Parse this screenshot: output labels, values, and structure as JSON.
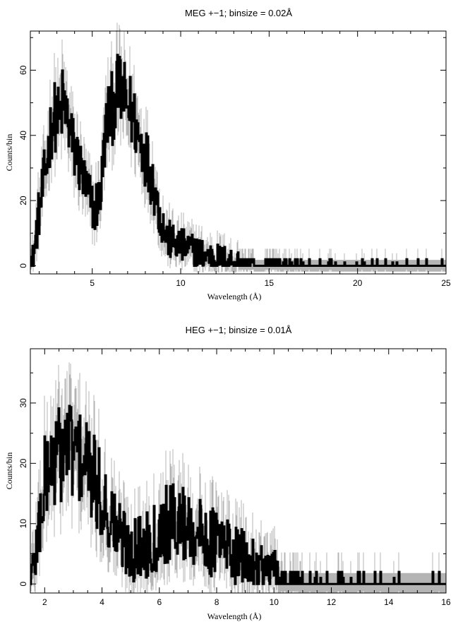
{
  "chart_data": [
    {
      "type": "line",
      "title": "MEG +−1; binsize = 0.02Å",
      "xlabel": "Wavelength (Å)",
      "ylabel": "Counts/bin",
      "xlim": [
        1.5,
        25
      ],
      "ylim": [
        -2.5,
        72
      ],
      "xticks": [
        5,
        10,
        15,
        20,
        25
      ],
      "xtick_labels": [
        "5",
        "10",
        "15",
        "20",
        "25"
      ],
      "yticks": [
        0,
        20,
        40,
        60
      ],
      "ytick_labels": [
        "0",
        "20",
        "40",
        "60"
      ],
      "legend": "none",
      "grid": false,
      "series": [
        {
          "x": [
            1.5,
            1.7,
            1.9,
            2.1,
            2.3,
            2.5,
            2.7,
            2.9,
            3.1,
            3.3,
            3.5,
            3.7,
            3.9,
            4.1,
            4.3,
            4.5,
            4.7,
            4.9,
            5.1,
            5.3,
            5.5,
            5.7,
            5.9,
            6.1,
            6.3,
            6.5,
            6.7,
            6.9,
            7.1,
            7.3,
            7.5,
            7.7,
            7.9,
            8.1,
            8.3,
            8.5,
            8.7,
            8.9,
            9.1,
            9.3,
            9.6,
            10.0,
            10.5,
            11.0,
            11.5,
            12.0,
            12.5,
            13.0,
            13.5,
            14.0,
            14.5,
            15.0,
            16.0,
            17.0,
            18.0,
            19.0,
            20.0,
            21.0,
            22.0,
            23.0,
            24.0,
            25.0
          ],
          "y": [
            0,
            4,
            14,
            20,
            28,
            36,
            44,
            46,
            44,
            50,
            47,
            42,
            36,
            34,
            30,
            26,
            22,
            20,
            17,
            20,
            24,
            40,
            46,
            48,
            52,
            54,
            52,
            50,
            48,
            46,
            42,
            38,
            36,
            32,
            28,
            24,
            18,
            14,
            10,
            8,
            7,
            6,
            5,
            4,
            3,
            2.5,
            2,
            1.5,
            1,
            0.8,
            0.6,
            0.5,
            0.4,
            0.3,
            0.3,
            0.2,
            0.2,
            0.2,
            0.2,
            0.2,
            0.2,
            0.2
          ]
        }
      ]
    },
    {
      "type": "line",
      "title": "HEG +−1; binsize = 0.01Å",
      "xlabel": "Wavelength (Å)",
      "ylabel": "Counts/bin",
      "xlim": [
        1.5,
        16
      ],
      "ylim": [
        -1.5,
        39
      ],
      "xticks": [
        2,
        4,
        6,
        8,
        10,
        12,
        14,
        16
      ],
      "xtick_labels": [
        "2",
        "4",
        "6",
        "8",
        "10",
        "12",
        "14",
        "16"
      ],
      "yticks": [
        0,
        10,
        20,
        30
      ],
      "ytick_labels": [
        "0",
        "10",
        "20",
        "30"
      ],
      "legend": "none",
      "grid": false,
      "series": [
        {
          "x": [
            1.5,
            1.6,
            1.7,
            1.8,
            1.9,
            2.0,
            2.2,
            2.4,
            2.6,
            2.8,
            3.0,
            3.2,
            3.4,
            3.6,
            3.8,
            4.0,
            4.2,
            4.4,
            4.6,
            4.8,
            5.0,
            5.2,
            5.4,
            5.6,
            5.8,
            6.0,
            6.2,
            6.4,
            6.6,
            6.8,
            7.0,
            7.2,
            7.4,
            7.6,
            7.8,
            8.0,
            8.2,
            8.4,
            8.6,
            8.8,
            9.0,
            9.2,
            9.4,
            9.6,
            9.8,
            10.0,
            10.2,
            10.4,
            10.6,
            10.8,
            11.0,
            11.5,
            12.0,
            12.5,
            13.0,
            13.5,
            14.0,
            14.5,
            15.0,
            15.5,
            16.0
          ],
          "y": [
            0,
            3,
            6,
            10,
            14,
            17,
            20,
            21,
            22,
            23,
            22,
            21,
            20,
            18,
            16,
            14,
            12,
            10,
            8,
            7,
            6,
            6,
            6,
            7,
            8,
            9,
            10,
            10,
            11,
            10,
            10,
            9,
            8,
            8,
            7,
            7,
            6,
            6,
            5,
            4,
            4,
            3,
            3,
            2.5,
            2,
            1.5,
            1.2,
            1,
            0.8,
            0.6,
            0.5,
            0.4,
            0.3,
            0.3,
            0.2,
            0.2,
            0.2,
            0.2,
            0.2,
            0.2,
            0.2
          ]
        }
      ]
    }
  ]
}
